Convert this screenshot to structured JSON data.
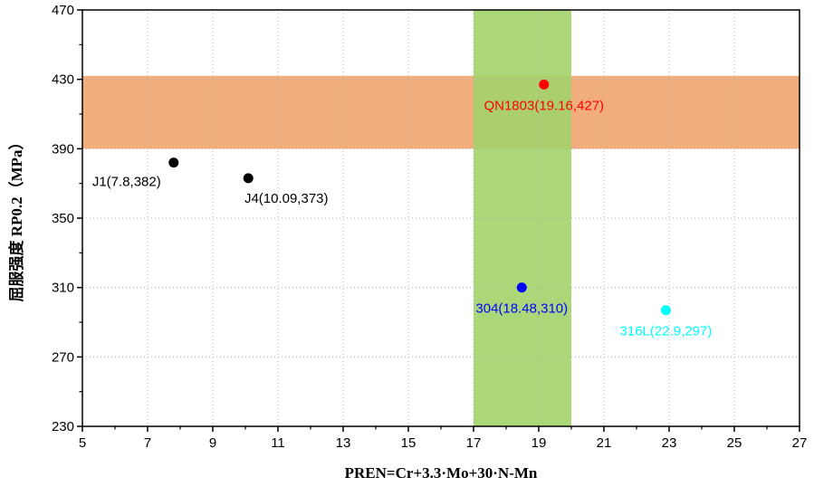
{
  "chart_data": {
    "type": "scatter",
    "xlabel": "PREN=Cr+3.3·Mo+30·N-Mn",
    "ylabel": "屈服强度 RP0.2（MPa）",
    "xlim": [
      5,
      27
    ],
    "ylim": [
      230,
      470
    ],
    "xticks": [
      5,
      7,
      9,
      11,
      13,
      15,
      17,
      19,
      21,
      23,
      25,
      27
    ],
    "yticks": [
      230,
      270,
      310,
      350,
      390,
      430,
      470
    ],
    "grid": true,
    "bands": [
      {
        "name": "horizontal-band",
        "orientation": "horizontal",
        "from": 390,
        "to": 432,
        "color": "#f0a46e"
      },
      {
        "name": "vertical-band",
        "orientation": "vertical",
        "from": 17,
        "to": 20,
        "color": "#a2d36a"
      }
    ],
    "points": [
      {
        "label": "J1(7.8,382)",
        "x": 7.8,
        "y": 382,
        "color": "#000000",
        "label_anchor": "below-left"
      },
      {
        "label": "J4(10.09,373)",
        "x": 10.09,
        "y": 373,
        "color": "#000000",
        "label_anchor": "below-right"
      },
      {
        "label": "QN1803(19.16,427)",
        "x": 19.16,
        "y": 427,
        "color": "#ff0000",
        "label_anchor": "below"
      },
      {
        "label": "304(18.48,310)",
        "x": 18.48,
        "y": 310,
        "color": "#0000ff",
        "label_anchor": "below"
      },
      {
        "label": "316L(22.9,297)",
        "x": 22.9,
        "y": 297,
        "color": "#00ffff",
        "label_anchor": "below"
      }
    ]
  }
}
